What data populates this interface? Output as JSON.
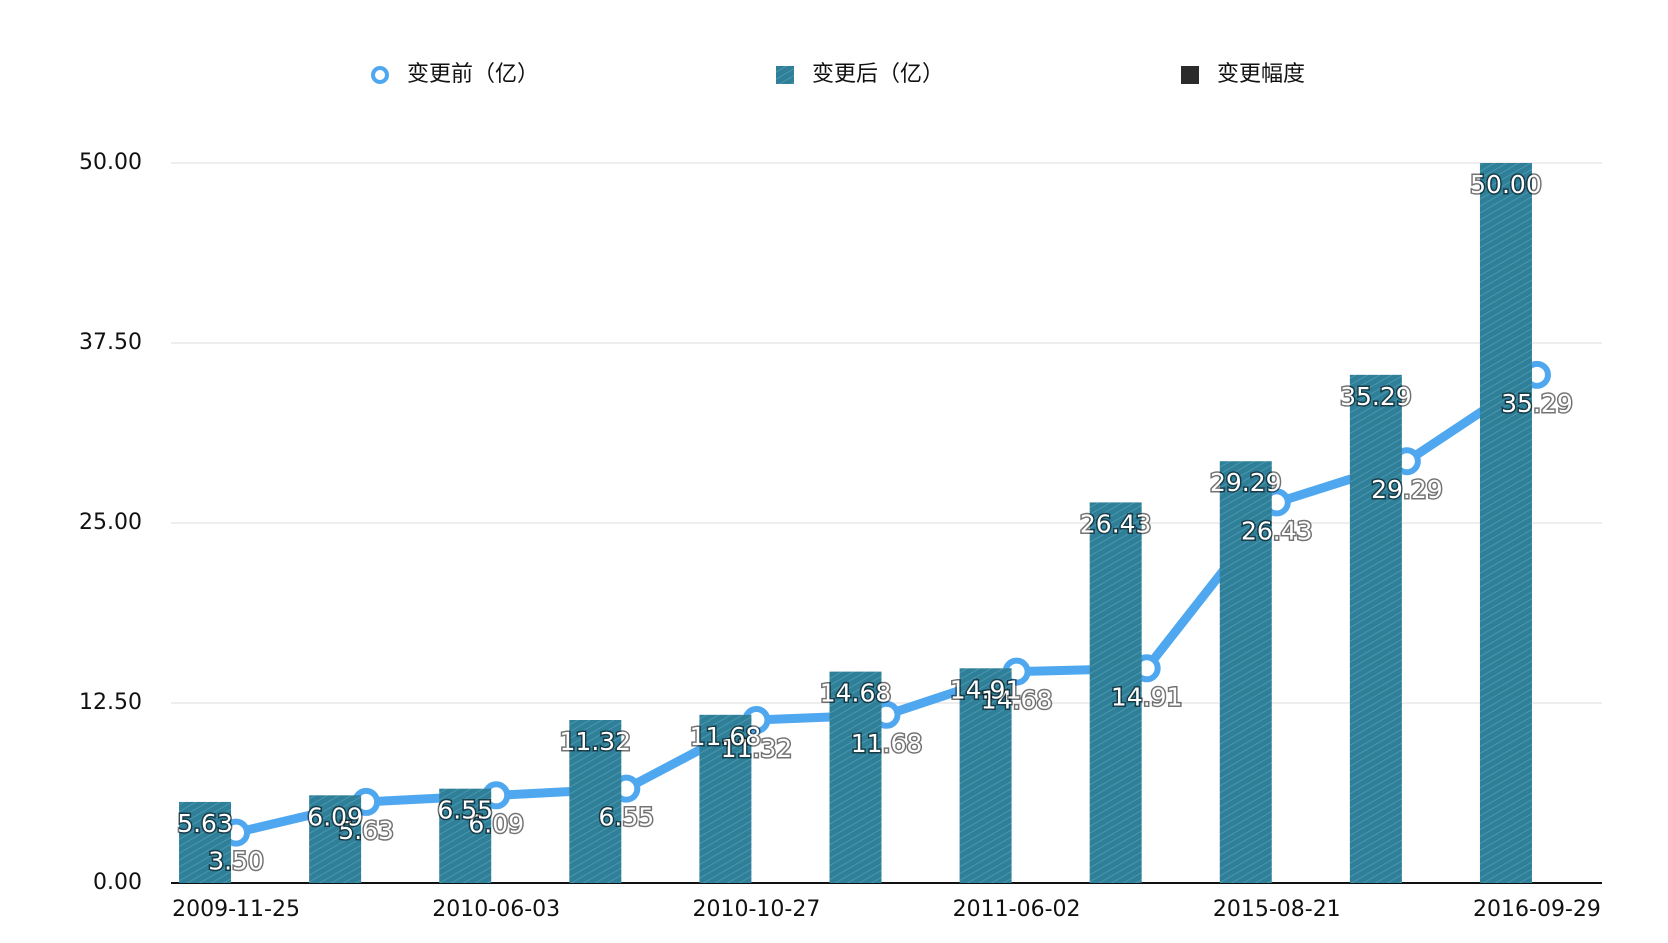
{
  "chart_data": {
    "type": "bar",
    "categories": [
      "2009-11-25",
      null,
      "2010-06-03",
      null,
      "2010-10-27",
      null,
      "2011-06-02",
      null,
      "2015-08-21",
      null,
      "2016-09-29"
    ],
    "series": [
      {
        "name": "变更前（亿）",
        "type": "line",
        "color": "#4fa8ef",
        "values": [
          3.5,
          5.63,
          6.09,
          6.55,
          11.32,
          11.68,
          14.68,
          14.91,
          26.43,
          29.29,
          35.29
        ],
        "value_labels": [
          "3.50",
          "5.63",
          "6.09",
          "6.55",
          "11.32",
          "11.68",
          "14.68",
          "14.91",
          "26.43",
          "29.29",
          "35.29"
        ]
      },
      {
        "name": "变更后（亿）",
        "type": "bar",
        "color": "#2f7f99",
        "values": [
          5.63,
          6.09,
          6.55,
          11.32,
          11.68,
          14.68,
          14.91,
          26.43,
          29.29,
          35.29,
          50
        ],
        "value_labels": [
          "5.63",
          "6.09",
          "6.55",
          "11.32",
          "11.68",
          "14.68",
          "14.91",
          "26.43",
          "29.29",
          "35.29",
          "50.00"
        ]
      },
      {
        "name": "变更幅度",
        "type": "bar",
        "color": "#2b2b2b"
      }
    ],
    "ylim": [
      0,
      50
    ],
    "yticks": [
      {
        "value": 0,
        "label": "0.00"
      },
      {
        "value": 12.5,
        "label": "12.50"
      },
      {
        "value": 25,
        "label": "25.00"
      },
      {
        "value": 37.5,
        "label": "37.50"
      },
      {
        "value": 50,
        "label": "50.00"
      }
    ],
    "grid": true,
    "legend": "top"
  }
}
